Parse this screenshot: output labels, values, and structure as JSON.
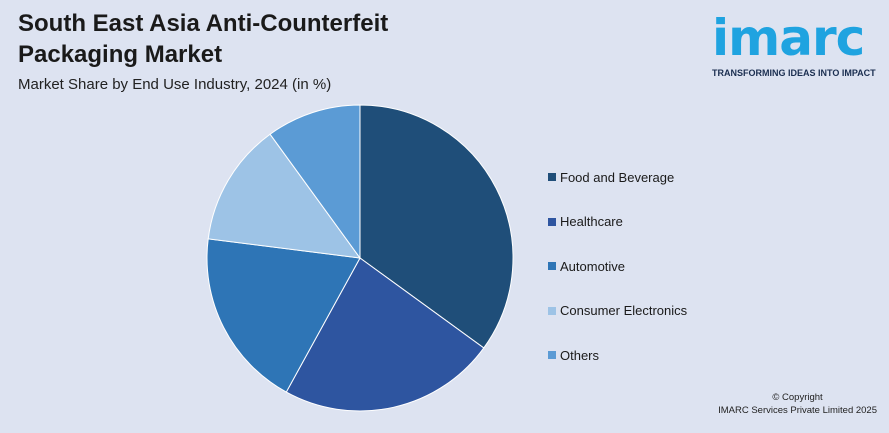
{
  "title": "South East Asia Anti-Counterfeit Packaging Market",
  "subtitle": "Market Share by End Use Industry, 2024 (in %)",
  "logo": {
    "word": "imarc",
    "tagline": "TRANSFORMING IDEAS INTO IMPACT"
  },
  "copyright": {
    "line1": "© Copyright",
    "line2": "IMARC Services Private Limited 2025"
  },
  "chart_data": {
    "type": "pie",
    "categories": [
      "Food and Beverage",
      "Healthcare",
      "Automotive",
      "Consumer Electronics",
      "Others"
    ],
    "values": [
      35,
      23,
      19,
      13,
      10
    ],
    "colors": [
      "#1f4e79",
      "#2e55a0",
      "#2e75b6",
      "#9dc3e6",
      "#5b9bd5"
    ],
    "legend_position": "right"
  }
}
